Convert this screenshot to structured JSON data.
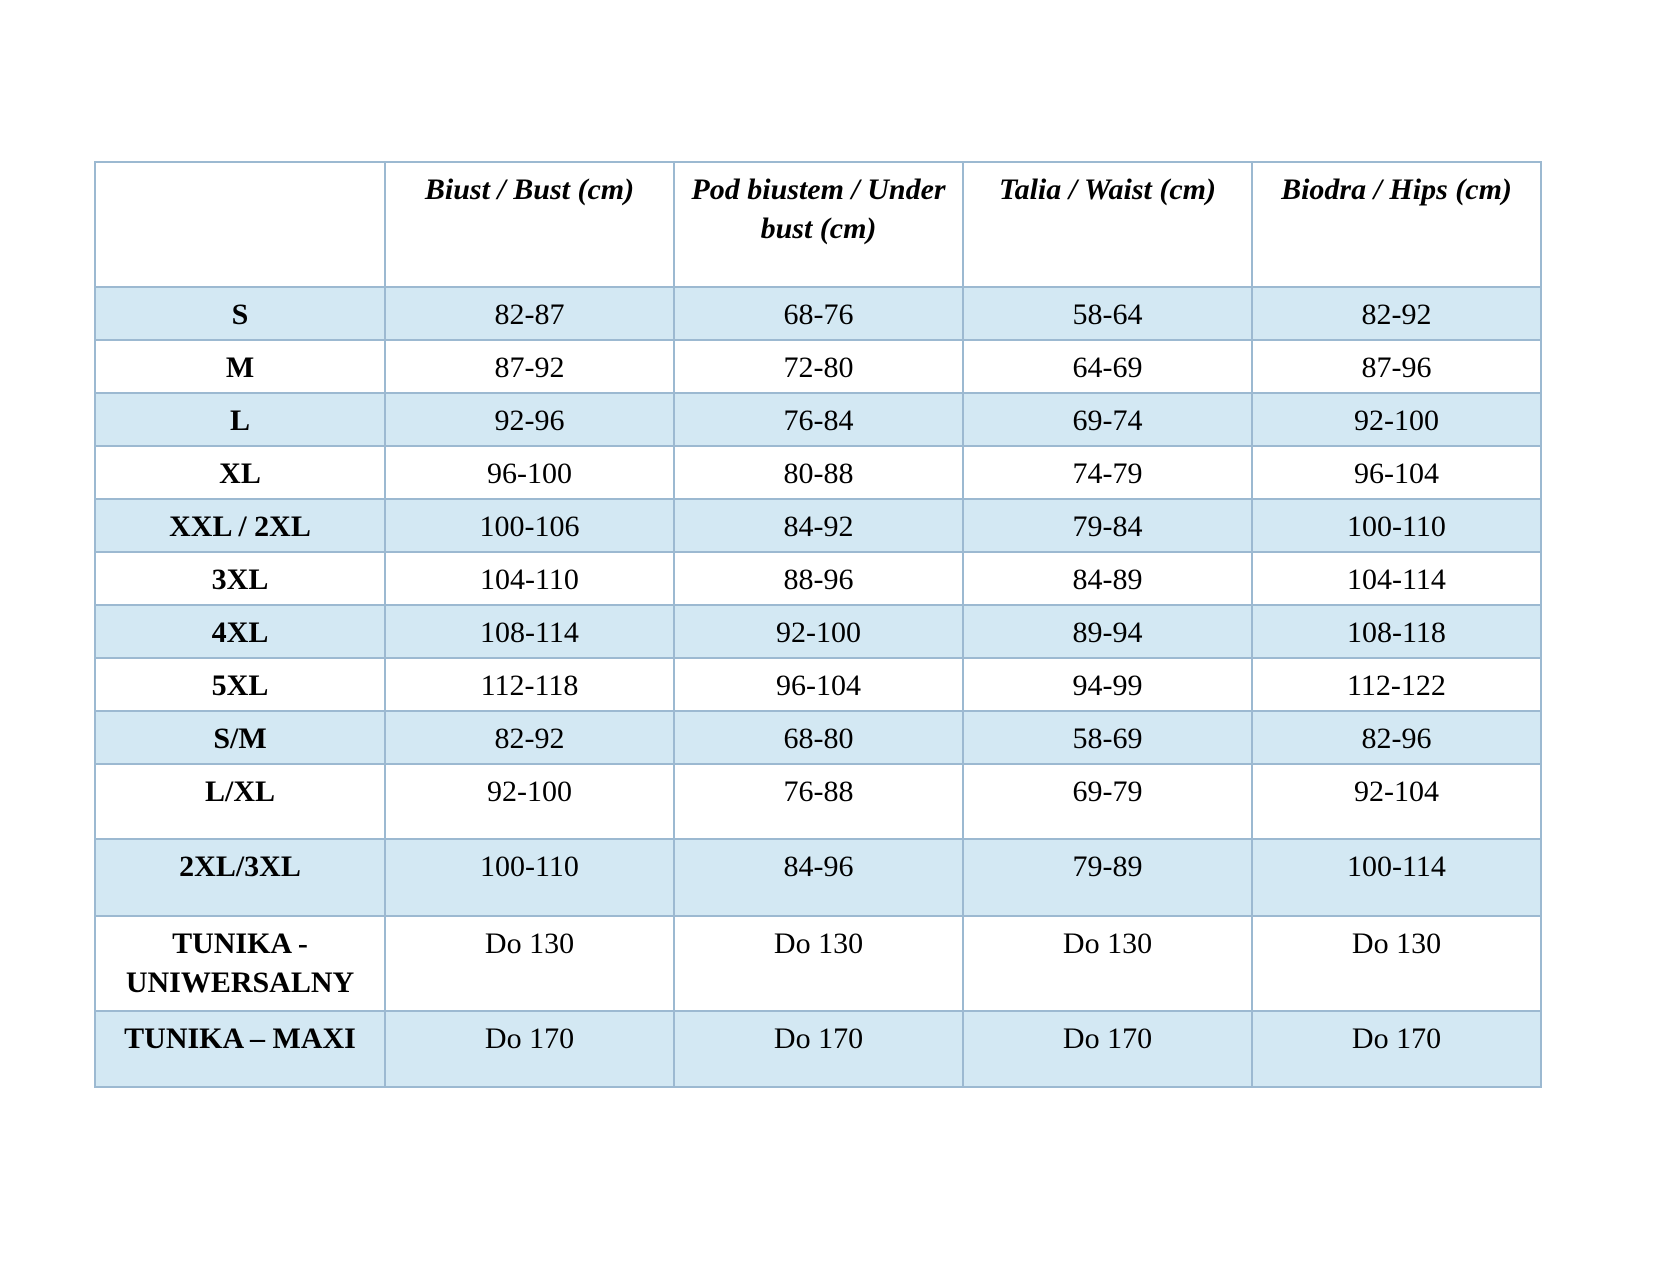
{
  "table": {
    "header": {
      "size_label": "",
      "columns": [
        "Biust / Bust (cm)",
        "Pod biustem / Under bust (cm)",
        "Talia / Waist (cm)",
        "Biodra / Hips (cm)"
      ]
    },
    "rows": [
      {
        "label": "S",
        "values": [
          "82-87",
          "68-76",
          "58-64",
          "82-92"
        ]
      },
      {
        "label": "M",
        "values": [
          "87-92",
          "72-80",
          "64-69",
          "87-96"
        ]
      },
      {
        "label": "L",
        "values": [
          "92-96",
          "76-84",
          "69-74",
          "92-100"
        ]
      },
      {
        "label": "XL",
        "values": [
          "96-100",
          "80-88",
          "74-79",
          "96-104"
        ]
      },
      {
        "label": "XXL / 2XL",
        "values": [
          "100-106",
          "84-92",
          "79-84",
          "100-110"
        ]
      },
      {
        "label": "3XL",
        "values": [
          "104-110",
          "88-96",
          "84-89",
          "104-114"
        ]
      },
      {
        "label": "4XL",
        "values": [
          "108-114",
          "92-100",
          "89-94",
          "108-118"
        ]
      },
      {
        "label": "5XL",
        "values": [
          "112-118",
          "96-104",
          "94-99",
          "112-122"
        ]
      },
      {
        "label": "S/M",
        "values": [
          "82-92",
          "68-80",
          "58-69",
          "82-96"
        ]
      },
      {
        "label": "L/XL",
        "values": [
          "92-100",
          "76-88",
          "69-79",
          "92-104"
        ]
      },
      {
        "label": "2XL/3XL",
        "values": [
          "100-110",
          "84-96",
          "79-89",
          "100-114"
        ]
      },
      {
        "label": "TUNIKA - UNIWERSALNY",
        "values": [
          "Do 130",
          "Do 130",
          "Do 130",
          "Do 130"
        ]
      },
      {
        "label": "TUNIKA – MAXI",
        "values": [
          "Do 170",
          "Do 170",
          "Do 170",
          "Do 170"
        ]
      }
    ]
  },
  "colors": {
    "row_shade": "#d3e8f3",
    "border": "#9cb9d1",
    "text": "#000000",
    "page_background": "#ffffff"
  }
}
